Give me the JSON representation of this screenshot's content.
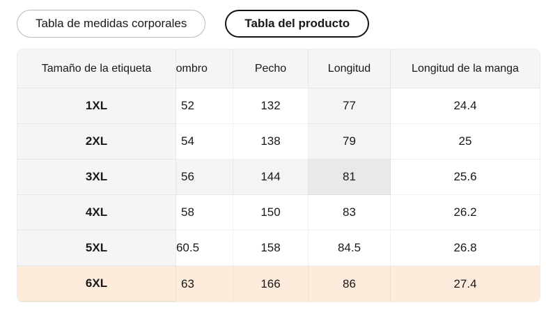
{
  "tabs": {
    "items": [
      {
        "label": "Tabla de medidas corporales",
        "selected": false
      },
      {
        "label": "Tabla del producto",
        "selected": true
      }
    ]
  },
  "size_table": {
    "columns": [
      "Tamaño de la etiqueta",
      "Hombro",
      "Pecho",
      "Longitud",
      "Longitud de la manga"
    ],
    "rows": [
      {
        "label": "1XL",
        "values": [
          "52",
          "132",
          "77",
          "24.4"
        ]
      },
      {
        "label": "2XL",
        "values": [
          "54",
          "138",
          "79",
          "25"
        ]
      },
      {
        "label": "3XL",
        "values": [
          "56",
          "144",
          "81",
          "25.6"
        ]
      },
      {
        "label": "4XL",
        "values": [
          "58",
          "150",
          "83",
          "26.2"
        ]
      },
      {
        "label": "5XL",
        "values": [
          "60.5",
          "158",
          "84.5",
          "26.8"
        ]
      },
      {
        "label": "6XL",
        "values": [
          "63",
          "166",
          "86",
          "27.4"
        ]
      }
    ],
    "selected_row_label": "6XL",
    "hovered_cell": {
      "row": "3XL",
      "column": "Longitud",
      "value": "81"
    }
  },
  "colors": {
    "selected-row-bg": "#fdecdb",
    "header-bg": "#f5f5f6",
    "hover-soft-bg": "#f4f4f5",
    "hover-strong-bg": "#e9e9ea",
    "border": "#e9e9e9",
    "text": "#16181c",
    "tab-border": "#b8b8b8",
    "tab-selected-border": "#121212"
  }
}
